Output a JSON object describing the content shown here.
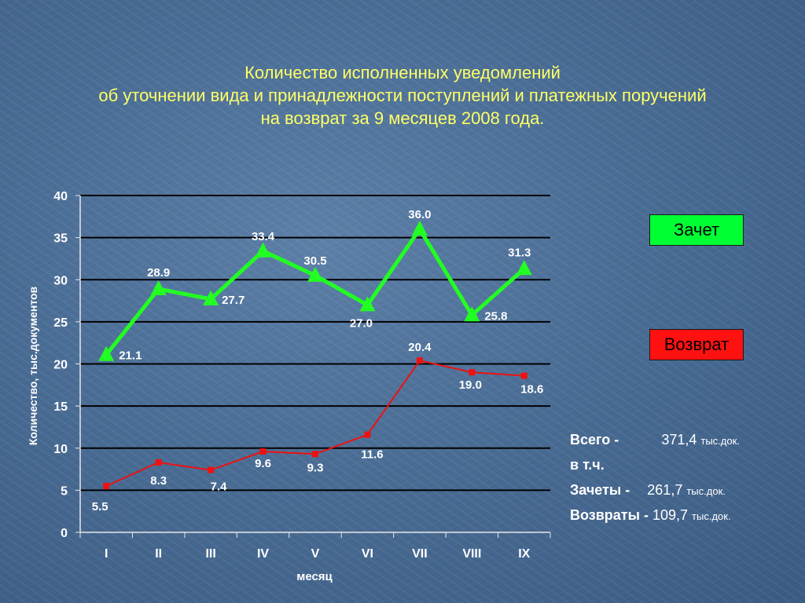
{
  "title": {
    "line1": "Количество исполненных уведомлений",
    "line2": "об уточнении вида и принадлежности поступлений и платежных поручений",
    "line3": "на возврат за 9 месяцев 2008 года."
  },
  "legend": {
    "zachet": "Зачет",
    "vozvrat": "Возврат"
  },
  "summary": {
    "total_label": "Всего  -",
    "total_value": "371,4",
    "total_unit": "тыс.док.",
    "including": "в т.ч.",
    "zachety_label": "Зачеты  -",
    "zachety_value": "261,7",
    "zachety_unit": "тыс.док.",
    "vozvraty_label": "Возвраты -",
    "vozvraty_value": "109,7",
    "vozvraty_unit": "тыс.док."
  },
  "colors": {
    "zachet": "#22ff22",
    "vozvrat": "#ee1111",
    "title": "#ffff66",
    "text": "#ffffff",
    "grid": "#000000"
  },
  "chart_data": {
    "type": "line",
    "title": "Количество исполненных уведомлений об уточнении вида и принадлежности поступлений и платежных поручений на возврат за 9 месяцев 2008 года.",
    "xlabel": "месяц",
    "ylabel": "Количество, тыс.документов",
    "categories": [
      "I",
      "II",
      "III",
      "IV",
      "V",
      "VI",
      "VII",
      "VIII",
      "IX"
    ],
    "ylim": [
      0,
      40
    ],
    "yticks": [
      0,
      5,
      10,
      15,
      20,
      25,
      30,
      35,
      40
    ],
    "grid": true,
    "series": [
      {
        "name": "Зачет",
        "color": "#22ff22",
        "marker": "triangle",
        "values": [
          21.1,
          28.9,
          27.7,
          33.4,
          30.5,
          27.0,
          36.0,
          25.8,
          31.3
        ],
        "labels": [
          "21.1",
          "28.9",
          "27.7",
          "33.4",
          "30.5",
          "27.0",
          "36.0",
          "25.8",
          "31.3"
        ]
      },
      {
        "name": "Возврат",
        "color": "#ee1111",
        "marker": "square",
        "values": [
          5.5,
          8.3,
          7.4,
          9.6,
          9.3,
          11.6,
          20.4,
          19.0,
          18.6
        ],
        "labels": [
          "5.5",
          "8.3",
          "7.4",
          "9.6",
          "9.3",
          "11.6",
          "20.4",
          "19.0",
          "18.6"
        ]
      }
    ]
  }
}
